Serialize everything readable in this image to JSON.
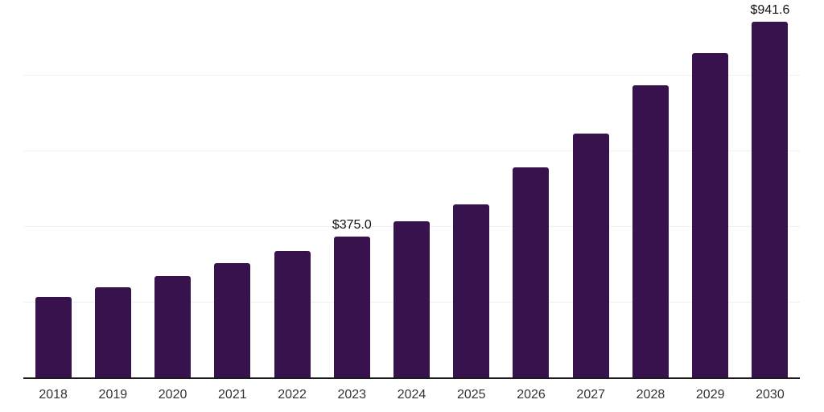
{
  "chart_data": {
    "type": "bar",
    "title": "",
    "xlabel": "",
    "ylabel": "",
    "categories": [
      "2018",
      "2019",
      "2020",
      "2021",
      "2022",
      "2023",
      "2024",
      "2025",
      "2026",
      "2027",
      "2028",
      "2029",
      "2030"
    ],
    "values": [
      214,
      240,
      271,
      305,
      336,
      375.0,
      415,
      459,
      558,
      647,
      775,
      860,
      941.6
    ],
    "value_labels": [
      "",
      "",
      "",
      "",
      "",
      "$375.0",
      "",
      "",
      "",
      "",
      "",
      "",
      "$941.6"
    ],
    "ylim": [
      0,
      1000
    ],
    "gridline_step": 200,
    "grid": "horizontal",
    "legend": "none",
    "colors": {
      "bar": "#38124c",
      "axis_line": "#1a1a1a",
      "gridline": "#f0f0f0",
      "tick_label": "#333333",
      "value_label": "#111111",
      "background": "#ffffff"
    }
  }
}
